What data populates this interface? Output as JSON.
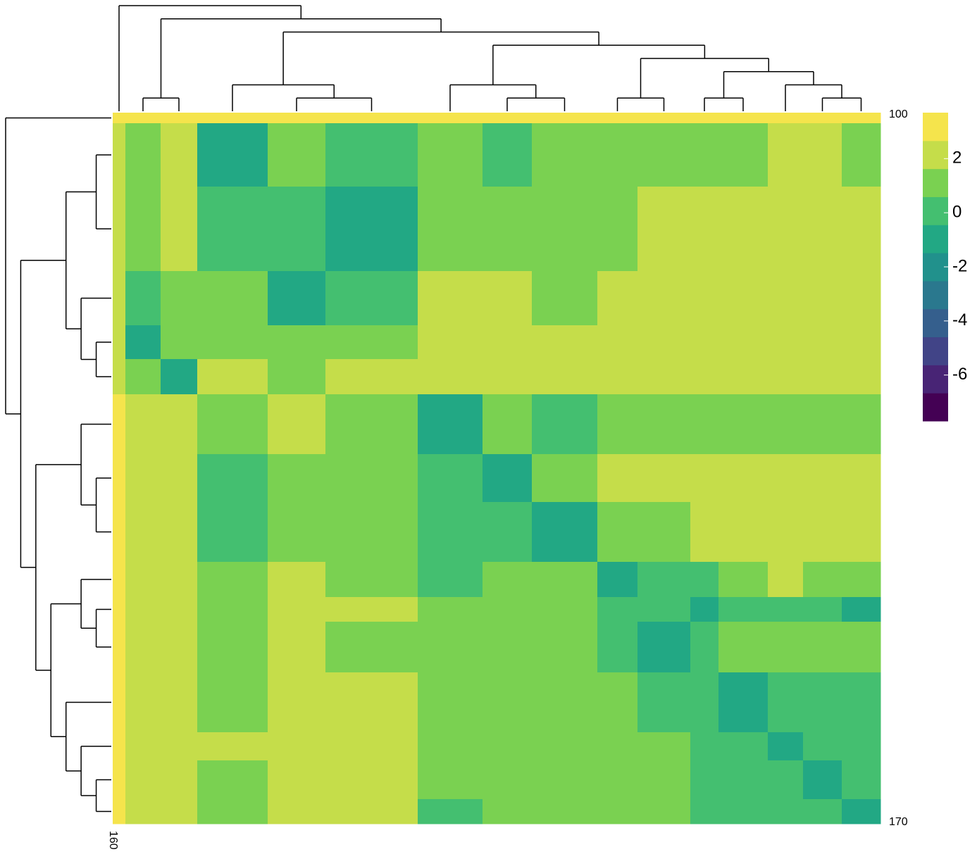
{
  "chart_data": {
    "type": "heatmap",
    "matrix": [
      [
        3,
        3,
        3,
        3,
        3,
        3,
        3,
        3,
        3,
        3,
        3,
        3,
        3,
        3,
        3,
        3
      ],
      [
        2,
        1,
        2,
        -1,
        1,
        0,
        1,
        0,
        1,
        1,
        1,
        1,
        1,
        2,
        2,
        1
      ],
      [
        2,
        1,
        2,
        0,
        0,
        -1,
        1,
        1,
        1,
        1,
        2,
        2,
        2,
        2,
        2,
        2
      ],
      [
        2,
        0,
        1,
        1,
        -1,
        0,
        2,
        2,
        1,
        2,
        2,
        2,
        2,
        2,
        2,
        2
      ],
      [
        2,
        -1,
        1,
        1,
        1,
        1,
        2,
        2,
        2,
        2,
        2,
        2,
        2,
        2,
        2,
        2
      ],
      [
        2,
        1,
        -1,
        2,
        1,
        2,
        2,
        2,
        2,
        2,
        2,
        2,
        2,
        2,
        2,
        2
      ],
      [
        3,
        2,
        2,
        1,
        2,
        1,
        -1,
        1,
        0,
        1,
        1,
        1,
        1,
        1,
        1,
        1
      ],
      [
        3,
        2,
        2,
        0,
        1,
        1,
        0,
        -1,
        1,
        2,
        2,
        2,
        2,
        2,
        2,
        2
      ],
      [
        3,
        2,
        2,
        0,
        1,
        1,
        0,
        0,
        -1,
        1,
        1,
        2,
        2,
        2,
        2,
        2
      ],
      [
        3,
        2,
        2,
        1,
        2,
        1,
        0,
        1,
        1,
        -1,
        0,
        0,
        1,
        2,
        1,
        1
      ],
      [
        3,
        2,
        2,
        1,
        2,
        2,
        1,
        1,
        1,
        0,
        0,
        -1,
        0,
        0,
        0,
        -1
      ],
      [
        3,
        2,
        2,
        1,
        2,
        1,
        1,
        1,
        1,
        0,
        -1,
        0,
        1,
        1,
        1,
        1
      ],
      [
        3,
        2,
        2,
        1,
        2,
        2,
        1,
        1,
        1,
        1,
        0,
        0,
        -1,
        0,
        0,
        0
      ],
      [
        3,
        2,
        2,
        2,
        2,
        2,
        1,
        1,
        1,
        1,
        1,
        0,
        0,
        -1,
        0,
        0
      ],
      [
        3,
        2,
        2,
        1,
        2,
        2,
        1,
        1,
        1,
        1,
        1,
        0,
        0,
        0,
        -1,
        0
      ],
      [
        3,
        2,
        2,
        1,
        2,
        2,
        0,
        1,
        1,
        1,
        1,
        0,
        0,
        0,
        0,
        -1
      ]
    ],
    "colorbar": {
      "lim": [
        -7.7,
        3.7
      ],
      "ticks": [
        2,
        0,
        -2,
        -4,
        -6
      ],
      "colors": [
        "#440154",
        "#482475",
        "#414487",
        "#355f8d",
        "#2a788e",
        "#21918c",
        "#22a884",
        "#44bf70",
        "#7ad151",
        "#c5dd4a",
        "#f5e44c"
      ]
    },
    "row_label_first": "100",
    "row_label_last": "170",
    "col_label_first": "160"
  }
}
